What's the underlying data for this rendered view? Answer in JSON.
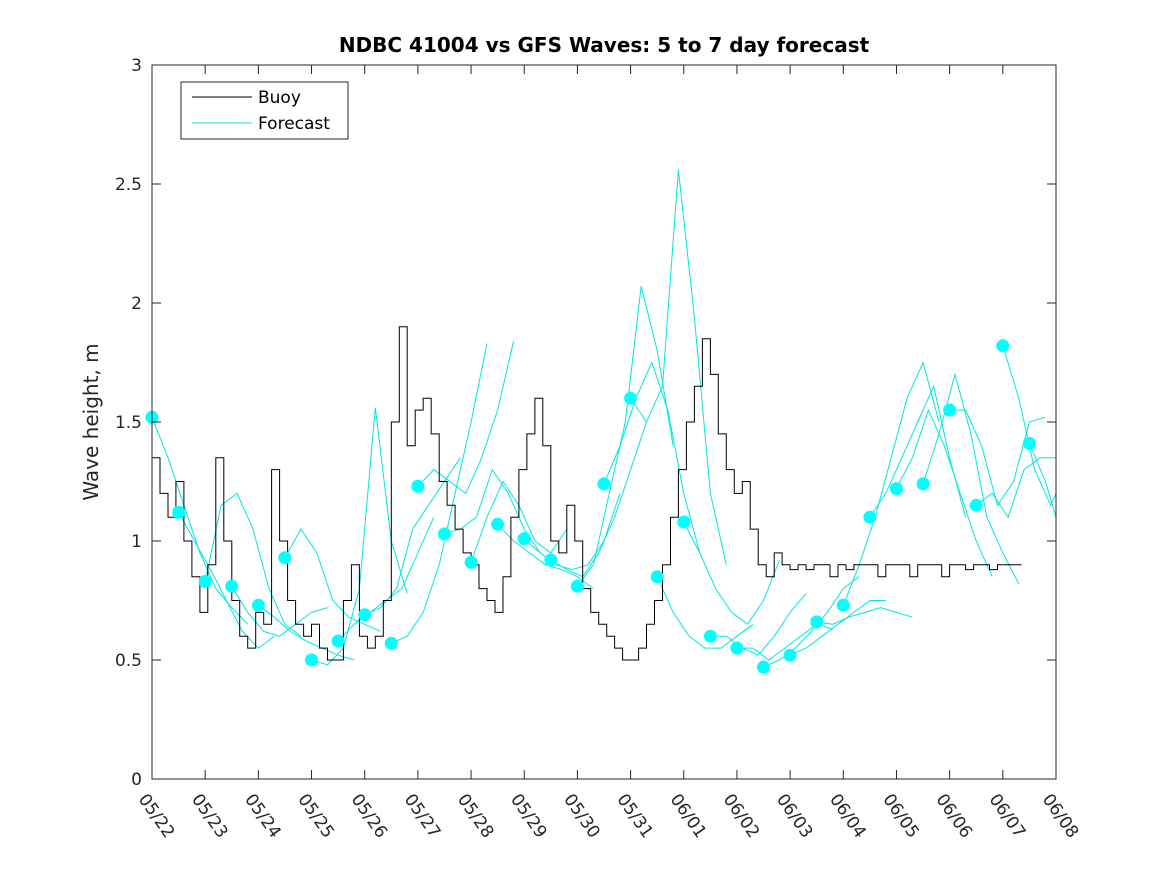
{
  "chart_data": {
    "type": "line",
    "title": "NDBC 41004 vs GFS Waves: 5 to 7 day forecast",
    "xlabel": "",
    "ylabel": "Wave height, m",
    "xlim": [
      0,
      17
    ],
    "ylim": [
      0,
      3
    ],
    "x_tick_values": [
      0,
      1,
      2,
      3,
      4,
      5,
      6,
      7,
      8,
      9,
      10,
      11,
      12,
      13,
      14,
      15,
      16,
      17
    ],
    "x_tick_labels": [
      "05/22",
      "05/23",
      "05/24",
      "05/25",
      "05/26",
      "05/27",
      "05/28",
      "05/29",
      "05/30",
      "05/31",
      "06/01",
      "06/02",
      "06/03",
      "06/04",
      "06/05",
      "06/06",
      "06/07",
      "06/08"
    ],
    "y_ticks": [
      0,
      0.5,
      1,
      1.5,
      2,
      2.5,
      3
    ],
    "y_tick_labels": [
      "0",
      "0.5",
      "1",
      "1.5",
      "2",
      "2.5",
      "3"
    ],
    "legend": {
      "position": "top-left",
      "entries": [
        {
          "label": "Buoy",
          "color": "#000000"
        },
        {
          "label": "Forecast",
          "color": "#00ffff"
        }
      ]
    },
    "colors": {
      "buoy": "#000000",
      "forecast": "#00e5e5",
      "marker": "#00ffff",
      "frame": "#262626"
    },
    "series": [
      {
        "name": "Buoy",
        "color": "#000000",
        "x": [
          0.0,
          0.15,
          0.3,
          0.45,
          0.6,
          0.75,
          0.9,
          1.05,
          1.2,
          1.35,
          1.5,
          1.65,
          1.8,
          1.95,
          2.1,
          2.25,
          2.4,
          2.55,
          2.7,
          2.85,
          3.0,
          3.15,
          3.3,
          3.45,
          3.6,
          3.75,
          3.9,
          4.05,
          4.2,
          4.35,
          4.5,
          4.65,
          4.8,
          4.95,
          5.1,
          5.25,
          5.4,
          5.55,
          5.7,
          5.85,
          6.0,
          6.15,
          6.3,
          6.45,
          6.6,
          6.75,
          6.9,
          7.05,
          7.2,
          7.35,
          7.5,
          7.65,
          7.8,
          7.95,
          8.1,
          8.25,
          8.4,
          8.55,
          8.7,
          8.85,
          9.0,
          9.15,
          9.3,
          9.45,
          9.6,
          9.75,
          9.9,
          10.05,
          10.2,
          10.35,
          10.5,
          10.65,
          10.8,
          10.95,
          11.1,
          11.25,
          11.4,
          11.55,
          11.7,
          11.85,
          12.0,
          12.15,
          12.3,
          12.45,
          12.6,
          12.75,
          12.9,
          13.05,
          13.2,
          13.35,
          13.5,
          13.65,
          13.8,
          13.95,
          14.1,
          14.25,
          14.4,
          14.55,
          14.7,
          14.85,
          15.0,
          15.15,
          15.3,
          15.45,
          15.6,
          15.75,
          15.9,
          16.05,
          16.2,
          16.35
        ],
        "y": [
          1.35,
          1.2,
          1.1,
          1.25,
          1.0,
          0.85,
          0.7,
          0.9,
          1.35,
          1.0,
          0.75,
          0.6,
          0.55,
          0.7,
          0.65,
          1.3,
          1.0,
          0.75,
          0.65,
          0.6,
          0.65,
          0.55,
          0.5,
          0.5,
          0.75,
          0.9,
          0.6,
          0.55,
          0.6,
          0.75,
          1.5,
          1.9,
          1.4,
          1.55,
          1.6,
          1.45,
          1.25,
          1.15,
          1.05,
          0.95,
          0.9,
          0.8,
          0.75,
          0.7,
          0.85,
          1.1,
          1.3,
          1.45,
          1.6,
          1.4,
          1.0,
          0.95,
          1.15,
          1.0,
          0.8,
          0.7,
          0.65,
          0.6,
          0.55,
          0.5,
          0.5,
          0.55,
          0.65,
          0.75,
          0.9,
          1.1,
          1.3,
          1.5,
          1.65,
          1.85,
          1.7,
          1.45,
          1.3,
          1.2,
          1.25,
          1.05,
          0.9,
          0.85,
          0.95,
          0.9,
          0.88,
          0.9,
          0.88,
          0.9,
          0.9,
          0.85,
          0.9,
          0.88,
          0.9,
          0.9,
          0.9,
          0.85,
          0.9,
          0.9,
          0.9,
          0.85,
          0.9,
          0.9,
          0.9,
          0.85,
          0.9,
          0.9,
          0.88,
          0.9,
          0.9,
          0.88,
          0.9,
          0.9,
          0.9,
          0.9
        ]
      },
      {
        "name": "Forecast",
        "color": "#00e5e5",
        "segments": [
          {
            "x": [
              0.0,
              0.3,
              0.6,
              0.9,
              1.2,
              1.5,
              1.8
            ],
            "y": [
              1.52,
              1.35,
              1.15,
              0.95,
              0.8,
              0.72,
              0.65
            ]
          },
          {
            "x": [
              0.5,
              0.8,
              1.1,
              1.4,
              1.7,
              2.0,
              2.3
            ],
            "y": [
              1.12,
              1.0,
              0.88,
              0.75,
              0.62,
              0.55,
              0.6
            ]
          },
          {
            "x": [
              1.0,
              1.3,
              1.6,
              1.9,
              2.2,
              2.5,
              2.8
            ],
            "y": [
              0.83,
              1.15,
              1.2,
              1.05,
              0.8,
              0.65,
              0.6
            ]
          },
          {
            "x": [
              1.5,
              1.8,
              2.1,
              2.4,
              2.7,
              3.0,
              3.3
            ],
            "y": [
              0.81,
              0.7,
              0.62,
              0.6,
              0.65,
              0.7,
              0.72
            ]
          },
          {
            "x": [
              2.0,
              2.3,
              2.6,
              2.9,
              3.2,
              3.5,
              3.8
            ],
            "y": [
              0.73,
              0.68,
              0.62,
              0.58,
              0.55,
              0.52,
              0.5
            ]
          },
          {
            "x": [
              2.5,
              2.8,
              3.1,
              3.4,
              3.7,
              4.0,
              4.3
            ],
            "y": [
              0.93,
              1.05,
              0.95,
              0.75,
              0.68,
              0.65,
              0.62
            ]
          },
          {
            "x": [
              3.0,
              3.3,
              3.6,
              3.9,
              4.2,
              4.5,
              4.8
            ],
            "y": [
              0.5,
              0.48,
              0.55,
              0.8,
              1.56,
              1.0,
              0.78
            ]
          },
          {
            "x": [
              3.5,
              3.8,
              4.1,
              4.4,
              4.7,
              5.0,
              5.3
            ],
            "y": [
              0.58,
              0.65,
              0.7,
              0.75,
              0.8,
              0.95,
              1.1
            ]
          },
          {
            "x": [
              4.0,
              4.3,
              4.6,
              4.9,
              5.2,
              5.5,
              5.8
            ],
            "y": [
              0.69,
              0.72,
              0.8,
              1.05,
              1.15,
              1.25,
              1.35
            ]
          },
          {
            "x": [
              4.5,
              4.8,
              5.1,
              5.4,
              5.7,
              6.0,
              6.3
            ],
            "y": [
              0.57,
              0.6,
              0.7,
              0.9,
              1.2,
              1.5,
              1.83
            ]
          },
          {
            "x": [
              5.0,
              5.3,
              5.6,
              5.9,
              6.2,
              6.5,
              6.8
            ],
            "y": [
              1.23,
              1.3,
              1.25,
              1.2,
              1.35,
              1.55,
              1.84
            ]
          },
          {
            "x": [
              5.5,
              5.8,
              6.1,
              6.4,
              6.7,
              7.0,
              7.3
            ],
            "y": [
              1.03,
              1.05,
              1.1,
              1.3,
              1.2,
              1.05,
              0.95
            ]
          },
          {
            "x": [
              6.0,
              6.3,
              6.6,
              6.9,
              7.2,
              7.5,
              7.8
            ],
            "y": [
              0.91,
              1.1,
              1.25,
              1.15,
              1.0,
              0.95,
              1.05
            ]
          },
          {
            "x": [
              6.5,
              6.8,
              7.1,
              7.4,
              7.7,
              8.0,
              8.3
            ],
            "y": [
              1.07,
              1.0,
              0.95,
              0.9,
              0.88,
              0.85,
              0.8
            ]
          },
          {
            "x": [
              7.0,
              7.3,
              7.6,
              7.9,
              8.2,
              8.5,
              8.8
            ],
            "y": [
              1.01,
              0.95,
              0.9,
              0.88,
              0.9,
              1.0,
              1.2
            ]
          },
          {
            "x": [
              7.5,
              7.8,
              8.1,
              8.4,
              8.7,
              9.0,
              9.3
            ],
            "y": [
              0.92,
              0.88,
              0.85,
              0.95,
              1.1,
              1.3,
              1.5
            ]
          },
          {
            "x": [
              8.0,
              8.3,
              8.6,
              8.9,
              9.2,
              9.5,
              9.8
            ],
            "y": [
              0.81,
              0.9,
              1.2,
              1.5,
              2.07,
              1.8,
              1.4
            ]
          },
          {
            "x": [
              8.5,
              8.8,
              9.1,
              9.4,
              9.7,
              10.0,
              10.3
            ],
            "y": [
              1.24,
              1.4,
              1.6,
              1.75,
              1.55,
              1.2,
              0.95
            ]
          },
          {
            "x": [
              9.0,
              9.3,
              9.6,
              9.9,
              10.2,
              10.5,
              10.8
            ],
            "y": [
              1.6,
              1.5,
              1.65,
              2.56,
              1.94,
              1.2,
              0.9
            ]
          },
          {
            "x": [
              9.5,
              9.8,
              10.1,
              10.4,
              10.7,
              11.0,
              11.3
            ],
            "y": [
              0.85,
              0.7,
              0.6,
              0.55,
              0.55,
              0.6,
              0.65
            ]
          },
          {
            "x": [
              10.0,
              10.3,
              10.6,
              10.9,
              11.2,
              11.5,
              11.8
            ],
            "y": [
              1.08,
              0.95,
              0.8,
              0.7,
              0.65,
              0.75,
              0.92
            ]
          },
          {
            "x": [
              10.5,
              10.8,
              11.1,
              11.4,
              11.7,
              12.0,
              12.3
            ],
            "y": [
              0.6,
              0.6,
              0.55,
              0.52,
              0.6,
              0.7,
              0.78
            ]
          },
          {
            "x": [
              11.0,
              11.3,
              11.6,
              11.9,
              12.2,
              12.5,
              12.8
            ],
            "y": [
              0.55,
              0.55,
              0.5,
              0.55,
              0.6,
              0.65,
              0.63
            ]
          },
          {
            "x": [
              11.5,
              11.8,
              12.1,
              12.4,
              12.7,
              13.0,
              13.3
            ],
            "y": [
              0.47,
              0.5,
              0.55,
              0.62,
              0.7,
              0.8,
              0.85
            ]
          },
          {
            "x": [
              12.0,
              12.3,
              12.6,
              12.9,
              13.2,
              13.5,
              13.8
            ],
            "y": [
              0.52,
              0.55,
              0.6,
              0.65,
              0.7,
              0.75,
              0.75
            ]
          },
          {
            "x": [
              12.5,
              12.8,
              13.1,
              13.4,
              13.7,
              14.0,
              14.3
            ],
            "y": [
              0.66,
              0.65,
              0.68,
              0.7,
              0.72,
              0.7,
              0.68
            ]
          },
          {
            "x": [
              13.0,
              13.3,
              13.6,
              13.9,
              14.2,
              14.5,
              14.8
            ],
            "y": [
              0.73,
              0.9,
              1.1,
              1.35,
              1.6,
              1.75,
              1.5
            ]
          },
          {
            "x": [
              13.5,
              13.8,
              14.1,
              14.4,
              14.7,
              15.0,
              15.3
            ],
            "y": [
              1.1,
              1.2,
              1.35,
              1.5,
              1.65,
              1.35,
              1.1
            ]
          },
          {
            "x": [
              14.0,
              14.3,
              14.6,
              14.9,
              15.2,
              15.5,
              15.8
            ],
            "y": [
              1.22,
              1.35,
              1.55,
              1.4,
              1.2,
              1.0,
              0.85
            ]
          },
          {
            "x": [
              14.5,
              14.8,
              15.1,
              15.4,
              15.7,
              16.0,
              16.3
            ],
            "y": [
              1.24,
              1.45,
              1.7,
              1.45,
              1.1,
              0.95,
              0.82
            ]
          },
          {
            "x": [
              15.0,
              15.3,
              15.6,
              15.9,
              16.2,
              16.5,
              16.8
            ],
            "y": [
              1.55,
              1.55,
              1.4,
              1.15,
              1.25,
              1.5,
              1.52
            ]
          },
          {
            "x": [
              15.5,
              15.8,
              16.1,
              16.4,
              16.7,
              17.0
            ],
            "y": [
              1.15,
              1.2,
              1.1,
              1.3,
              1.35,
              1.35
            ]
          },
          {
            "x": [
              16.0,
              16.3,
              16.6,
              16.9,
              17.0
            ],
            "y": [
              1.82,
              1.6,
              1.3,
              1.15,
              1.2
            ]
          },
          {
            "x": [
              16.5,
              16.8,
              17.0
            ],
            "y": [
              1.41,
              1.25,
              1.1
            ]
          }
        ]
      },
      {
        "name": "Forecast start points",
        "color": "#00ffff",
        "x": [
          0.0,
          0.5,
          1.0,
          1.5,
          2.0,
          2.5,
          3.0,
          3.5,
          4.0,
          4.5,
          5.0,
          5.5,
          6.0,
          6.5,
          7.0,
          7.5,
          8.0,
          8.5,
          9.0,
          9.5,
          10.0,
          10.5,
          11.0,
          11.5,
          12.0,
          12.5,
          13.0,
          13.5,
          14.0,
          14.5,
          15.0,
          15.5,
          16.0,
          16.5
        ],
        "y": [
          1.52,
          1.12,
          0.83,
          0.81,
          0.73,
          0.93,
          0.5,
          0.58,
          0.69,
          0.57,
          1.23,
          1.03,
          0.91,
          1.07,
          1.01,
          0.92,
          0.81,
          1.24,
          1.6,
          0.85,
          1.08,
          0.6,
          0.55,
          0.47,
          0.52,
          0.66,
          0.73,
          1.1,
          1.22,
          1.24,
          1.55,
          1.15,
          1.82,
          1.41
        ]
      }
    ]
  }
}
